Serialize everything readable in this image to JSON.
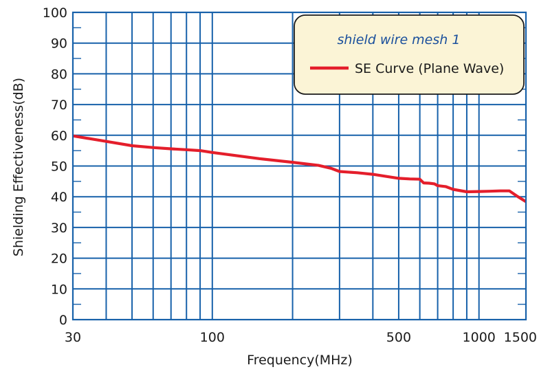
{
  "chart_data": {
    "type": "line",
    "xlabel": "Frequency(MHz)",
    "ylabel": "Shielding Effectiveness(dB)",
    "x_scale": "log",
    "xlim": [
      30,
      1500
    ],
    "ylim": [
      0,
      100
    ],
    "x_ticks": [
      30,
      100,
      500,
      1000,
      1500
    ],
    "x_tick_labels": [
      "30",
      "100",
      "500",
      "1000",
      "1500"
    ],
    "y_ticks": [
      0,
      10,
      20,
      30,
      40,
      50,
      60,
      70,
      80,
      90,
      100
    ],
    "y_tick_labels": [
      "0",
      "10",
      "20",
      "30",
      "40",
      "50",
      "60",
      "70",
      "80",
      "90",
      "100"
    ],
    "x_gridlines": [
      30,
      40,
      50,
      60,
      70,
      80,
      90,
      100,
      200,
      300,
      400,
      500,
      600,
      700,
      800,
      900,
      1000,
      1500
    ],
    "y_gridlines": [
      0,
      10,
      20,
      30,
      40,
      50,
      60,
      70,
      80,
      90,
      100
    ],
    "grid": true,
    "legend": {
      "title": "shield wire mesh 1",
      "placement": "top-right"
    },
    "series": [
      {
        "name": "SE Curve (Plane Wave)",
        "color": "#e41e2b",
        "x": [
          30,
          40,
          50,
          60,
          70,
          80,
          90,
          100,
          150,
          200,
          250,
          280,
          300,
          350,
          400,
          450,
          500,
          550,
          600,
          620,
          650,
          680,
          700,
          750,
          800,
          900,
          1000,
          1100,
          1200,
          1300,
          1400,
          1500
        ],
        "y": [
          59.8,
          58,
          56.6,
          56,
          55.6,
          55.3,
          55,
          54.4,
          52.4,
          51.2,
          50.2,
          49.2,
          48.2,
          47.8,
          47.3,
          46.6,
          46,
          45.8,
          45.7,
          44.5,
          44.4,
          44.2,
          43.6,
          43.3,
          42.4,
          41.6,
          41.7,
          41.8,
          41.9,
          41.9,
          40,
          38.4
        ]
      }
    ]
  }
}
